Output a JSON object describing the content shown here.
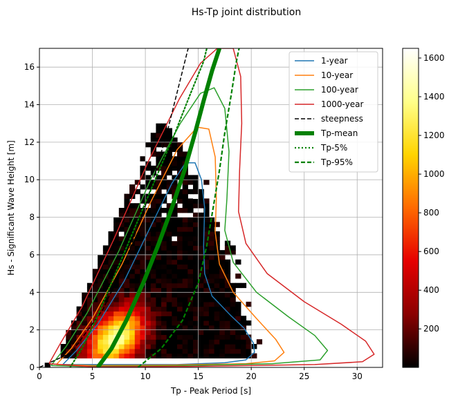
{
  "chart_data": {
    "type": "heatmap",
    "title": "Hs-Tp joint distribution",
    "xlabel": "Tp - Peak Period [s]",
    "ylabel": "Hs - Significant Wave Height [m]",
    "xlim": [
      0,
      32.4
    ],
    "ylim": [
      0,
      17
    ],
    "xticks": [
      "0",
      "5",
      "10",
      "15",
      "20",
      "25",
      "30"
    ],
    "yticks": [
      "0",
      "2",
      "4",
      "6",
      "8",
      "10",
      "12",
      "14",
      "16"
    ],
    "grid": true,
    "legend_position": "top-right",
    "colorbar": {
      "range": [
        1,
        1650
      ],
      "ticks": [
        "200",
        "400",
        "600",
        "800",
        "1000",
        "1200",
        "1400",
        "1600"
      ],
      "colormap": [
        "#000000",
        "#8a0000",
        "#e60000",
        "#ff6a00",
        "#ffd400",
        "#ffff8a",
        "#ffffff"
      ]
    },
    "heatmap_bins": {
      "tp_width": 0.5,
      "hs_width": 0.25
    },
    "series": [
      {
        "name": "1-year",
        "color": "#1f77b4",
        "style": "solid",
        "width": 1.5,
        "points": [
          [
            2.2,
            0.15
          ],
          [
            3.5,
            0.9
          ],
          [
            5.5,
            2.3
          ],
          [
            8,
            4.6
          ],
          [
            10.5,
            7.5
          ],
          [
            12.5,
            9.8
          ],
          [
            13.8,
            10.9
          ],
          [
            14.7,
            10.9
          ],
          [
            15.3,
            10
          ],
          [
            15.6,
            8.5
          ],
          [
            15.5,
            6.5
          ],
          [
            15.6,
            5
          ],
          [
            16.3,
            3.8
          ],
          [
            18,
            2.8
          ],
          [
            19.3,
            2.1
          ],
          [
            20.2,
            1.3
          ],
          [
            20.3,
            0.8
          ],
          [
            19.5,
            0.4
          ],
          [
            17.5,
            0.25
          ],
          [
            13,
            0.15
          ],
          [
            7,
            0.15
          ],
          [
            2.2,
            0.15
          ]
        ]
      },
      {
        "name": "10-year",
        "color": "#ff7f0e",
        "style": "solid",
        "width": 1.5,
        "points": [
          [
            1.6,
            0.15
          ],
          [
            3,
            1
          ],
          [
            5,
            2.6
          ],
          [
            7.8,
            5.5
          ],
          [
            10.5,
            8.8
          ],
          [
            13,
            11.6
          ],
          [
            14.9,
            12.8
          ],
          [
            16,
            12.7
          ],
          [
            16.6,
            11.2
          ],
          [
            16.7,
            9
          ],
          [
            16.6,
            7.2
          ],
          [
            17,
            5.5
          ],
          [
            18.3,
            4
          ],
          [
            20.5,
            2.6
          ],
          [
            22.3,
            1.5
          ],
          [
            23.1,
            0.8
          ],
          [
            22.2,
            0.35
          ],
          [
            19.5,
            0.2
          ],
          [
            12,
            0.12
          ],
          [
            5,
            0.1
          ],
          [
            1.6,
            0.15
          ]
        ]
      },
      {
        "name": "100-year",
        "color": "#2ca02c",
        "style": "solid",
        "width": 1.5,
        "points": [
          [
            1.1,
            0.1
          ],
          [
            2.5,
            1.1
          ],
          [
            4.5,
            2.9
          ],
          [
            7.5,
            6.2
          ],
          [
            10.5,
            10
          ],
          [
            13.3,
            13
          ],
          [
            15.2,
            14.6
          ],
          [
            16.5,
            14.9
          ],
          [
            17.5,
            13.8
          ],
          [
            17.9,
            11.5
          ],
          [
            17.7,
            9
          ],
          [
            17.5,
            7.3
          ],
          [
            18.3,
            5.6
          ],
          [
            20.5,
            4
          ],
          [
            23.5,
            2.7
          ],
          [
            26,
            1.7
          ],
          [
            27.2,
            0.9
          ],
          [
            26.5,
            0.4
          ],
          [
            22,
            0.2
          ],
          [
            12,
            0.08
          ],
          [
            4,
            0.05
          ],
          [
            1.1,
            0.1
          ]
        ]
      },
      {
        "name": "1000-year",
        "color": "#d62728",
        "style": "solid",
        "width": 1.5,
        "points": [
          [
            0.9,
            0.2
          ],
          [
            2,
            1.3
          ],
          [
            4,
            3.2
          ],
          [
            7,
            6.8
          ],
          [
            10.3,
            11
          ],
          [
            13.2,
            14.3
          ],
          [
            15.2,
            16.2
          ],
          [
            16.8,
            17
          ],
          [
            18.3,
            17
          ],
          [
            19,
            15.5
          ],
          [
            19.1,
            13
          ],
          [
            18.9,
            10.5
          ],
          [
            18.8,
            8.3
          ],
          [
            19.5,
            6.6
          ],
          [
            21.5,
            5
          ],
          [
            25,
            3.5
          ],
          [
            28.5,
            2.3
          ],
          [
            30.8,
            1.4
          ],
          [
            31.6,
            0.7
          ],
          [
            30.5,
            0.3
          ],
          [
            26,
            0.15
          ],
          [
            14,
            0.05
          ],
          [
            5,
            0.03
          ],
          [
            0.9,
            0.2
          ]
        ]
      },
      {
        "name": "steepness",
        "color": "#000000",
        "style": "dashed",
        "width": 1.5,
        "points": [
          [
            0,
            0
          ],
          [
            3,
            0.78
          ],
          [
            6,
            3.1
          ],
          [
            8,
            5.5
          ],
          [
            10,
            8.6
          ],
          [
            12,
            12.4
          ],
          [
            14,
            16.9
          ],
          [
            14.05,
            17
          ]
        ]
      },
      {
        "name": "Tp-mean",
        "color": "#008000",
        "style": "solid",
        "width": 6,
        "points": [
          [
            5.5,
            0
          ],
          [
            6.8,
            1
          ],
          [
            8.2,
            2.5
          ],
          [
            9.8,
            4.5
          ],
          [
            11.2,
            6.5
          ],
          [
            12.5,
            8.5
          ],
          [
            13.7,
            10.5
          ],
          [
            14.7,
            12.5
          ],
          [
            15.5,
            14.2
          ],
          [
            16.3,
            15.8
          ],
          [
            17,
            17
          ]
        ]
      },
      {
        "name": "Tp-5%",
        "color": "#008000",
        "style": "dotted",
        "width": 2.2,
        "points": [
          [
            2.9,
            0
          ],
          [
            4,
            1
          ],
          [
            5.3,
            2.5
          ],
          [
            6.8,
            4.5
          ],
          [
            8.3,
            6.5
          ],
          [
            9.8,
            8.5
          ],
          [
            11.3,
            10.5
          ],
          [
            12.8,
            12.5
          ],
          [
            14.2,
            14.5
          ],
          [
            15.5,
            16.3
          ],
          [
            15.8,
            17
          ]
        ]
      },
      {
        "name": "Tp-95%",
        "color": "#008000",
        "style": "dashed",
        "width": 2.2,
        "points": [
          [
            9.3,
            0
          ],
          [
            11.5,
            1
          ],
          [
            13.5,
            2.5
          ],
          [
            15,
            4.5
          ],
          [
            15.8,
            6.5
          ],
          [
            16.4,
            8.5
          ],
          [
            17,
            10.5
          ],
          [
            17.5,
            12.5
          ],
          [
            18.1,
            14.5
          ],
          [
            18.6,
            16.3
          ],
          [
            18.85,
            17
          ]
        ]
      }
    ]
  }
}
